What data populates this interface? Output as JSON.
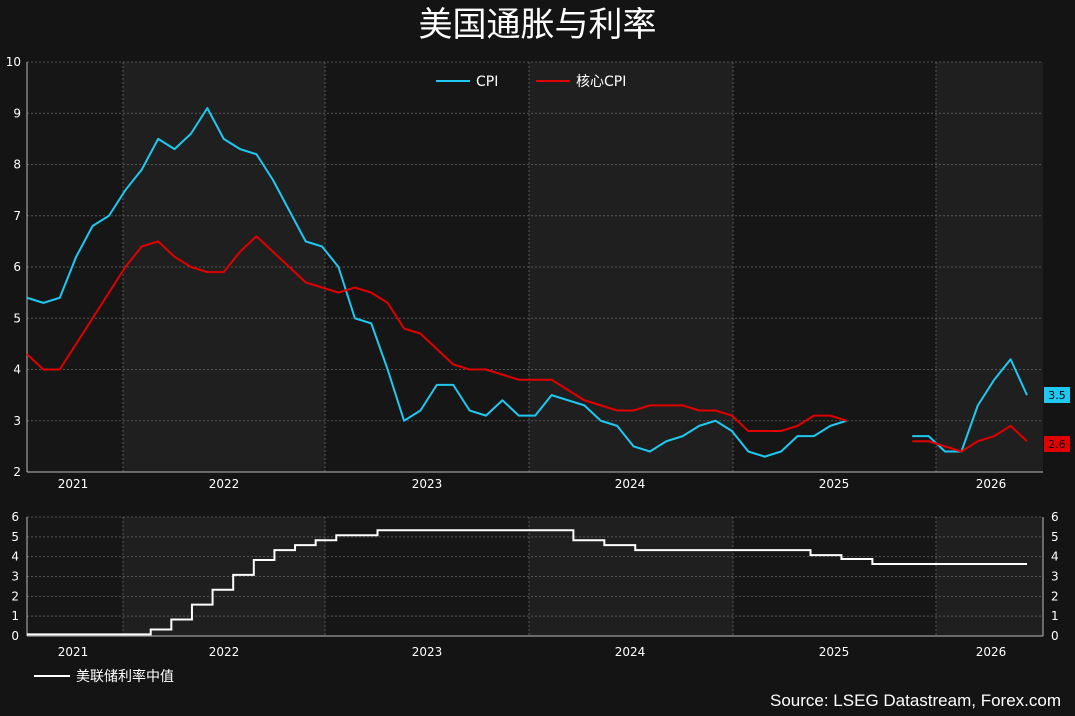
{
  "title": "美国通胀与利率",
  "source": "Source: LSEG Datastream, Forex.com",
  "colors": {
    "cpi": "#1ec8f0",
    "core": "#e00000",
    "rate": "#ffffff",
    "bg": "#141414",
    "band": "#1f1f1f"
  },
  "chart_data": [
    {
      "type": "line",
      "ylim": [
        2,
        10
      ],
      "y_ticks": [
        "2",
        "3",
        "4",
        "5",
        "6",
        "7",
        "8",
        "9",
        "10"
      ],
      "x_ticks": [
        "2021",
        "2022",
        "2023",
        "2024",
        "2025",
        "2026"
      ],
      "grid": true,
      "legend_position": "top",
      "series": [
        {
          "name": "CPI",
          "last_label": "3.5",
          "values": [
            5.4,
            5.3,
            5.4,
            6.2,
            6.8,
            7.0,
            7.5,
            7.9,
            8.5,
            8.3,
            8.6,
            9.1,
            8.5,
            8.3,
            8.2,
            7.7,
            7.1,
            6.5,
            6.4,
            6.0,
            5.0,
            4.9,
            4.0,
            3.0,
            3.2,
            3.7,
            3.7,
            3.2,
            3.1,
            3.4,
            3.1,
            3.1,
            3.5,
            3.4,
            3.3,
            3.0,
            2.9,
            2.5,
            2.4,
            2.6,
            2.7,
            2.9,
            3.0,
            2.8,
            2.4,
            2.3,
            2.4,
            2.7,
            2.7,
            2.9,
            3.0,
            null,
            null,
            null,
            2.7,
            2.7,
            2.4,
            2.4,
            3.3,
            3.8,
            4.2,
            3.5
          ]
        },
        {
          "name": "核心CPI",
          "last_label": "2.6",
          "values": [
            4.3,
            4.0,
            4.0,
            4.5,
            5.0,
            5.5,
            6.0,
            6.4,
            6.5,
            6.2,
            6.0,
            5.9,
            5.9,
            6.3,
            6.6,
            6.3,
            6.0,
            5.7,
            5.6,
            5.5,
            5.6,
            5.5,
            5.3,
            4.8,
            4.7,
            4.4,
            4.1,
            4.0,
            4.0,
            3.9,
            3.8,
            3.8,
            3.8,
            3.6,
            3.4,
            3.3,
            3.2,
            3.2,
            3.3,
            3.3,
            3.3,
            3.2,
            3.2,
            3.1,
            2.8,
            2.8,
            2.8,
            2.9,
            3.1,
            3.1,
            3.0,
            null,
            null,
            null,
            2.6,
            2.6,
            2.5,
            2.4,
            2.6,
            2.7,
            2.9,
            2.6
          ]
        }
      ]
    },
    {
      "type": "line",
      "ylim": [
        0,
        6
      ],
      "y_ticks": [
        "0",
        "1",
        "2",
        "3",
        "4",
        "5",
        "6"
      ],
      "x_ticks": [
        "2021",
        "2022",
        "2023",
        "2024",
        "2025",
        "2026"
      ],
      "grid": true,
      "legend_position": "bottom-left",
      "step": true,
      "series": [
        {
          "name": "美联储利率中值",
          "values": [
            0.08,
            0.08,
            0.08,
            0.08,
            0.08,
            0.08,
            0.08,
            0.08,
            0.08,
            0.08,
            0.08,
            0.08,
            0.33,
            0.33,
            0.83,
            0.83,
            1.58,
            1.58,
            2.33,
            2.33,
            3.08,
            3.08,
            3.83,
            3.83,
            4.33,
            4.33,
            4.58,
            4.58,
            4.83,
            4.83,
            5.08,
            5.08,
            5.08,
            5.08,
            5.33,
            5.33,
            5.33,
            5.33,
            5.33,
            5.33,
            5.33,
            5.33,
            5.33,
            5.33,
            5.33,
            5.33,
            5.33,
            5.33,
            5.33,
            5.33,
            5.33,
            5.33,
            5.33,
            4.83,
            4.83,
            4.83,
            4.58,
            4.58,
            4.58,
            4.33,
            4.33,
            4.33,
            4.33,
            4.33,
            4.33,
            4.33,
            4.33,
            4.33,
            4.33,
            4.33,
            4.33,
            4.33,
            4.33,
            4.33,
            4.33,
            4.33,
            4.08,
            4.08,
            4.08,
            3.88,
            3.88,
            3.88,
            3.63,
            3.63,
            3.63,
            3.63,
            3.63,
            3.63,
            3.63,
            3.63,
            3.63,
            3.63,
            3.63,
            3.63,
            3.63,
            3.63,
            3.63,
            3.63
          ]
        }
      ]
    }
  ]
}
